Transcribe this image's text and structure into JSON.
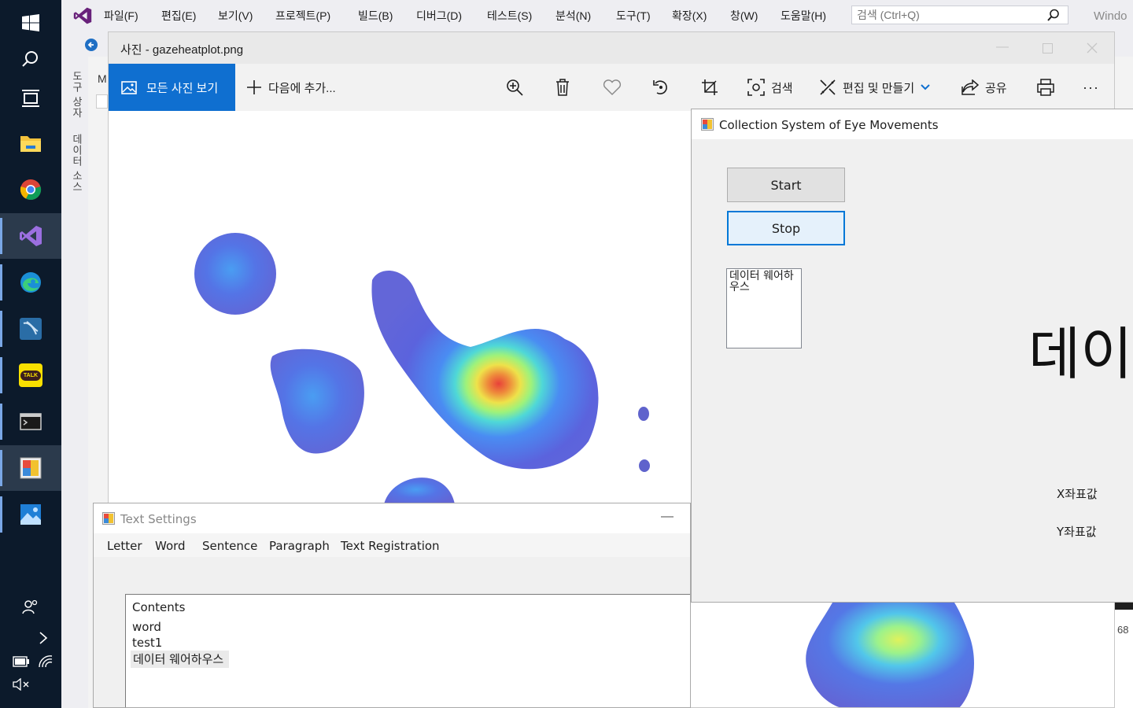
{
  "taskbar": {
    "items": [
      {
        "icon": "windows-start-icon"
      },
      {
        "icon": "search-icon"
      },
      {
        "icon": "task-view-icon"
      },
      {
        "icon": "file-explorer-icon"
      },
      {
        "icon": "chrome-icon"
      },
      {
        "icon": "visual-studio-icon"
      },
      {
        "icon": "edge-icon"
      },
      {
        "icon": "mysql-workbench-icon"
      },
      {
        "icon": "kakaotalk-icon"
      },
      {
        "icon": "terminal-icon"
      },
      {
        "icon": "winforms-app-icon"
      },
      {
        "icon": "photos-icon"
      }
    ],
    "kakaotalk_label": "TALK",
    "tray_icons": [
      "people-icon",
      "chevron-right-icon",
      "battery-icon",
      "wifi-icon",
      "volume-mute-icon"
    ]
  },
  "vs": {
    "menu": [
      "파일(F)",
      "편집(E)",
      "보기(V)",
      "프로젝트(P)",
      "빌드(B)",
      "디버그(D)",
      "테스트(S)",
      "분석(N)",
      "도구(T)",
      "확장(X)",
      "창(W)",
      "도움말(H)"
    ],
    "search_placeholder": "검색 (Ctrl+Q)",
    "title_fragment": "Windo",
    "side_tabs": [
      "도구 상자",
      "데이터 소스"
    ],
    "doc_tab_fragment": "M",
    "status_fragment": "68"
  },
  "photos": {
    "title": "사진 - gazeheatplot.png",
    "all_photos_label": "모든 사진 보기",
    "add_to_label": "다음에 추가...",
    "search_label": "검색",
    "edit_create_label": "편집 및 만들기",
    "share_label": "공유",
    "more_label": "···"
  },
  "eye_form": {
    "title": "Collection System of Eye Movements",
    "start_label": "Start",
    "stop_label": "Stop",
    "listbox_text": "데이터 웨어하우스",
    "big_text": "데이",
    "x_label": "X좌표값",
    "y_label": "Y좌표값"
  },
  "text_settings": {
    "title": "Text Settings",
    "menu": [
      "Letter",
      "Word",
      "Sentence",
      "Paragraph",
      "Text Registration"
    ],
    "contents_header": "Contents",
    "items": [
      "word",
      "test1",
      "데이터 웨어하우스"
    ]
  },
  "colors": {
    "taskbar_bg": "#0c1a2b",
    "accent_blue": "#0f6fd0",
    "heat_low": "#5b63dd",
    "heat_high": "#e8413a"
  }
}
